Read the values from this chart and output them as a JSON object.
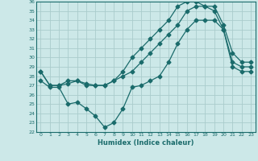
{
  "xlabel": "Humidex (Indice chaleur)",
  "bg_color": "#cce8e8",
  "grid_color": "#aacccc",
  "line_color": "#1a6b6b",
  "xlim": [
    -0.5,
    23.5
  ],
  "ylim": [
    22,
    36
  ],
  "xticks": [
    0,
    1,
    2,
    3,
    4,
    5,
    6,
    7,
    8,
    9,
    10,
    11,
    12,
    13,
    14,
    15,
    16,
    17,
    18,
    19,
    20,
    21,
    22,
    23
  ],
  "yticks": [
    22,
    23,
    24,
    25,
    26,
    27,
    28,
    29,
    30,
    31,
    32,
    33,
    34,
    35,
    36
  ],
  "line1_x": [
    0,
    1,
    2,
    3,
    4,
    5,
    6,
    7,
    8,
    9,
    10,
    11,
    12,
    13,
    14,
    15,
    16,
    17,
    18,
    19,
    20,
    21,
    22,
    23
  ],
  "line1_y": [
    28.5,
    27.0,
    27.0,
    27.5,
    27.5,
    27.0,
    27.0,
    27.0,
    27.5,
    28.0,
    28.5,
    29.5,
    30.5,
    31.5,
    32.5,
    33.5,
    35.0,
    35.5,
    35.5,
    35.5,
    33.5,
    30.5,
    29.5,
    29.5
  ],
  "line2_x": [
    0,
    1,
    2,
    3,
    4,
    5,
    6,
    7,
    8,
    9,
    10,
    11,
    12,
    13,
    14,
    15,
    16,
    17,
    18,
    19,
    20,
    21,
    22,
    23
  ],
  "line2_y": [
    28.5,
    27.0,
    27.0,
    27.2,
    27.5,
    27.2,
    27.0,
    27.0,
    27.5,
    28.5,
    30.0,
    31.0,
    32.0,
    33.0,
    34.0,
    35.5,
    36.0,
    36.0,
    35.5,
    35.0,
    33.0,
    29.5,
    29.0,
    29.0
  ],
  "line3_x": [
    0,
    1,
    2,
    3,
    4,
    5,
    6,
    7,
    8,
    9,
    10,
    11,
    12,
    13,
    14,
    15,
    16,
    17,
    18,
    19,
    20,
    21,
    22,
    23
  ],
  "line3_y": [
    27.5,
    26.8,
    26.8,
    25.0,
    25.2,
    24.5,
    23.7,
    22.5,
    23.0,
    24.5,
    26.8,
    27.0,
    27.5,
    28.0,
    29.5,
    31.5,
    33.0,
    34.0,
    34.0,
    34.0,
    33.0,
    29.0,
    28.5,
    28.5
  ],
  "markersize": 2.5,
  "linewidth": 0.9,
  "xlabel_fontsize": 6,
  "tick_fontsize": 4.5
}
